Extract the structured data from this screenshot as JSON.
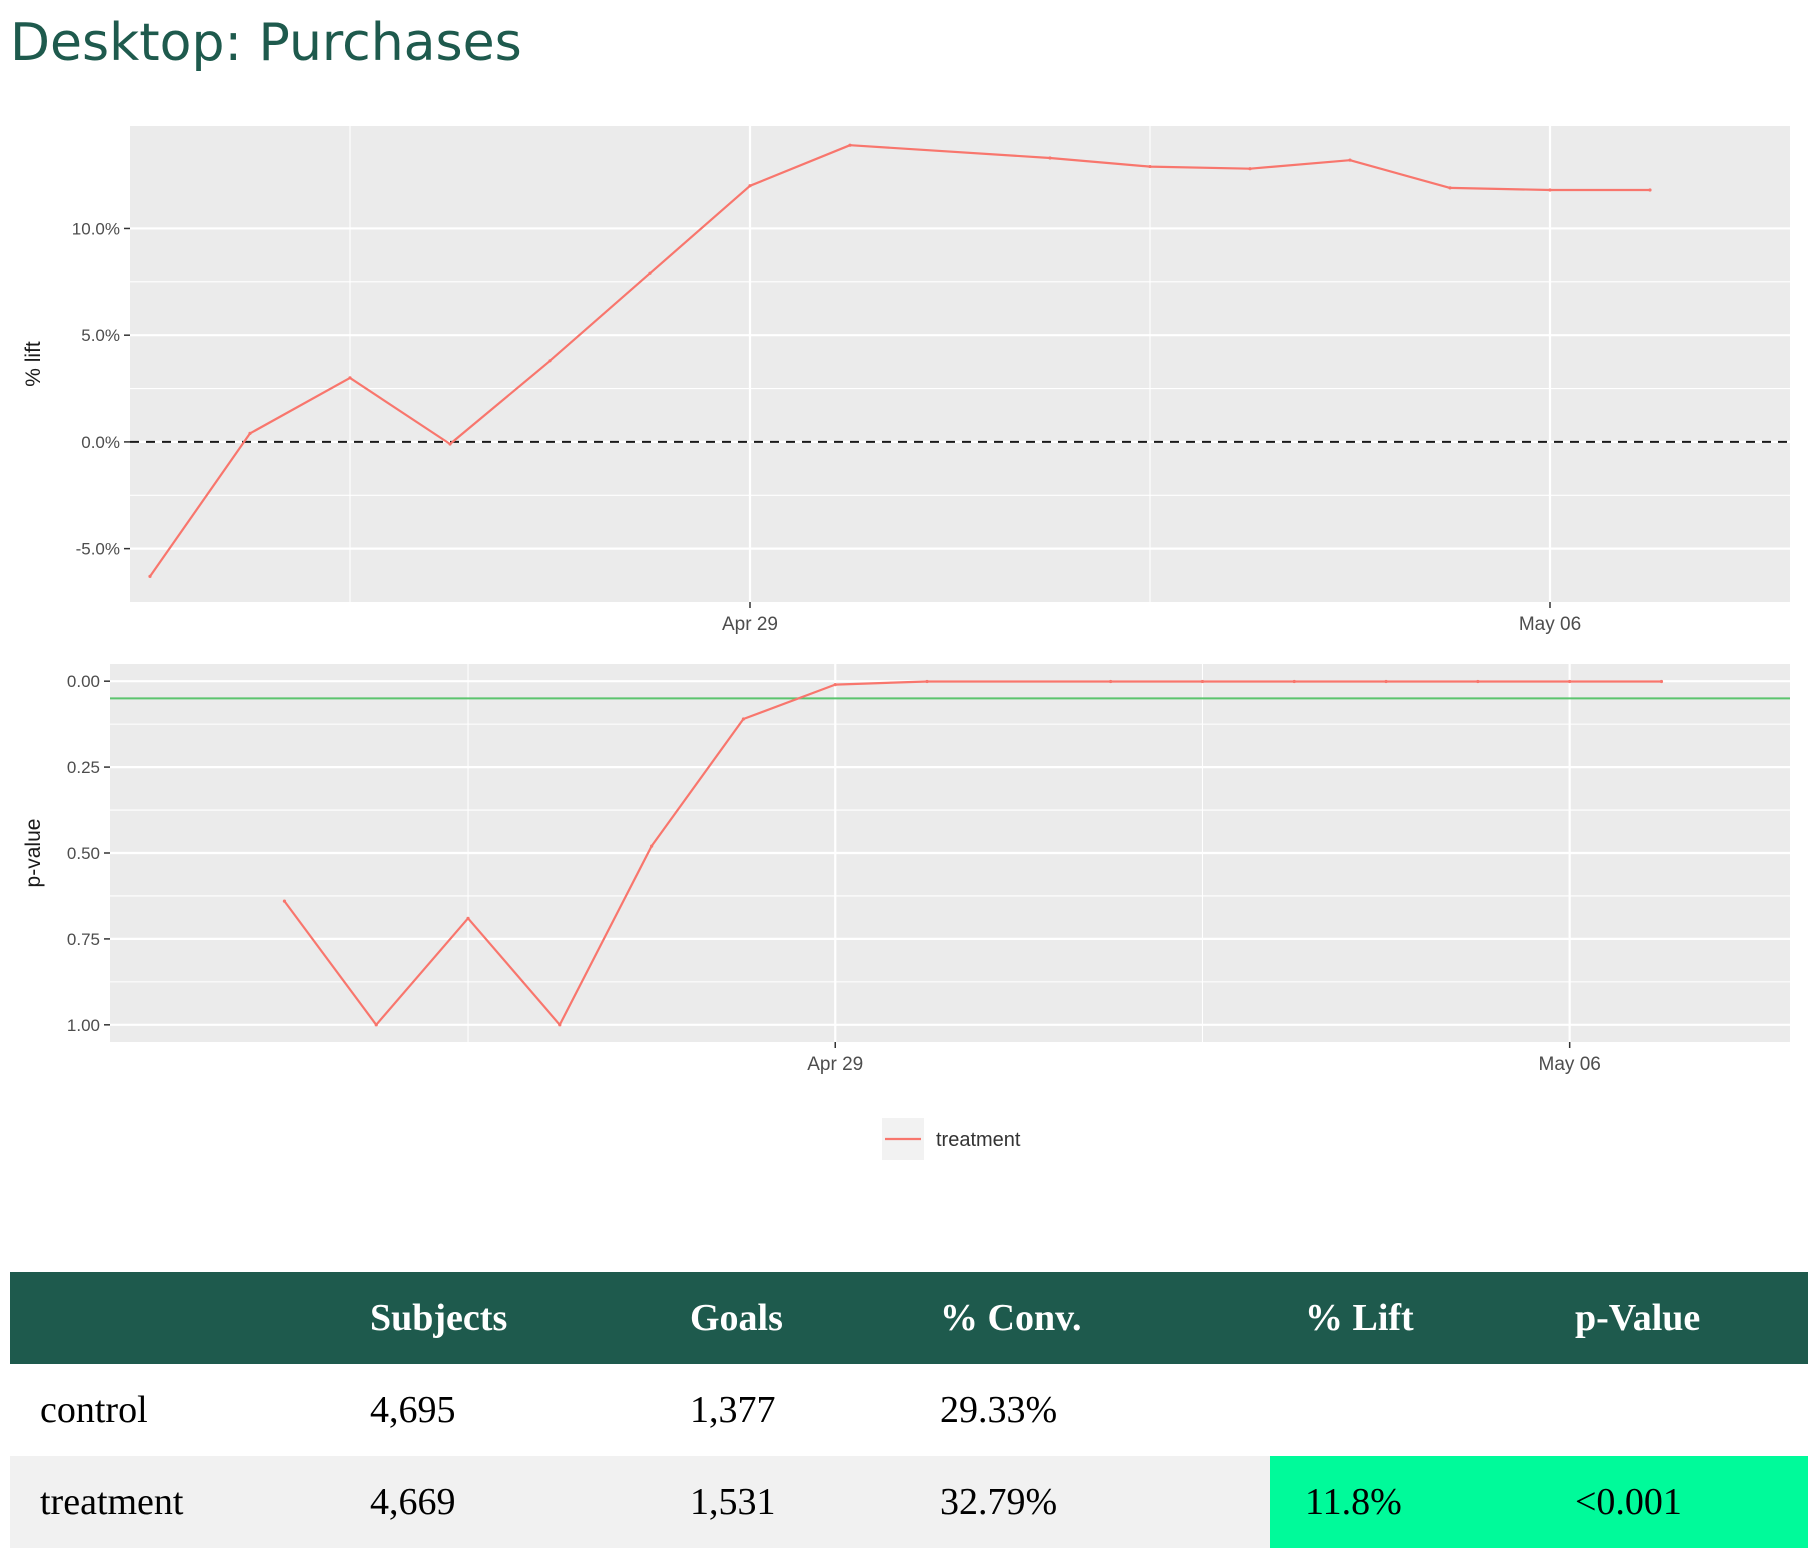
{
  "page": {
    "title": "Desktop: Purchases"
  },
  "colors": {
    "title": "#1e5a4d",
    "table_header_bg": "#1e5a4d",
    "panel_bg": "#ebebeb",
    "series_treatment": "#f8766d",
    "threshold_line": "#5bc46e",
    "significant_highlight": "#00fa9a"
  },
  "chart_data": [
    {
      "type": "line",
      "ylabel": "% lift",
      "x_ticks": [
        "Apr 29",
        "May 06"
      ],
      "y_ticks": [
        "-5.0%",
        "0.0%",
        "5.0%",
        "10.0%"
      ],
      "ylim": [
        -7.5,
        14.8
      ],
      "reference_line": {
        "y": 0.0,
        "style": "dashed"
      },
      "x": [
        "Apr 23",
        "Apr 24",
        "Apr 25",
        "Apr 26",
        "Apr 27",
        "Apr 28",
        "Apr 29",
        "Apr 30",
        "May 01",
        "May 02",
        "May 03",
        "May 04",
        "May 05",
        "May 06",
        "May 07"
      ],
      "series": [
        {
          "name": "treatment",
          "values": [
            -6.3,
            0.4,
            3.0,
            -0.1,
            3.8,
            7.9,
            12.0,
            13.9,
            13.3,
            12.9,
            12.8,
            13.2,
            11.9,
            11.8,
            11.8
          ]
        }
      ],
      "grid": true,
      "legend": "bottom"
    },
    {
      "type": "line",
      "ylabel": "p-value",
      "x_ticks": [
        "Apr 29",
        "May 06"
      ],
      "y_ticks": [
        "0.00",
        "0.25",
        "0.50",
        "0.75",
        "1.00"
      ],
      "ylim": [
        1.05,
        -0.05
      ],
      "y_reversed": true,
      "reference_line": {
        "y": 0.05,
        "style": "solid"
      },
      "x": [
        "Apr 22",
        "Apr 23",
        "Apr 24",
        "Apr 25",
        "Apr 26",
        "Apr 27",
        "Apr 28",
        "Apr 29",
        "Apr 30",
        "May 01",
        "May 02",
        "May 03",
        "May 04",
        "May 05",
        "May 06",
        "May 07"
      ],
      "series": [
        {
          "name": "treatment",
          "values": [
            null,
            0.64,
            1.0,
            0.69,
            1.0,
            0.48,
            0.11,
            0.01,
            0.001,
            0.001,
            0.001,
            0.001,
            0.001,
            0.001,
            0.001,
            0.001
          ]
        }
      ],
      "grid": true,
      "legend": "bottom"
    },
    {
      "type": "table",
      "columns": [
        "",
        "Subjects",
        "Goals",
        "% Conv.",
        "% Lift",
        "p-Value"
      ],
      "rows": [
        [
          "control",
          "4,695",
          "1,377",
          "29.33%",
          "",
          ""
        ],
        [
          "treatment",
          "4,669",
          "1,531",
          "32.79%",
          "11.8%",
          "<0.001"
        ]
      ]
    }
  ],
  "legend": {
    "items": [
      "treatment"
    ]
  }
}
